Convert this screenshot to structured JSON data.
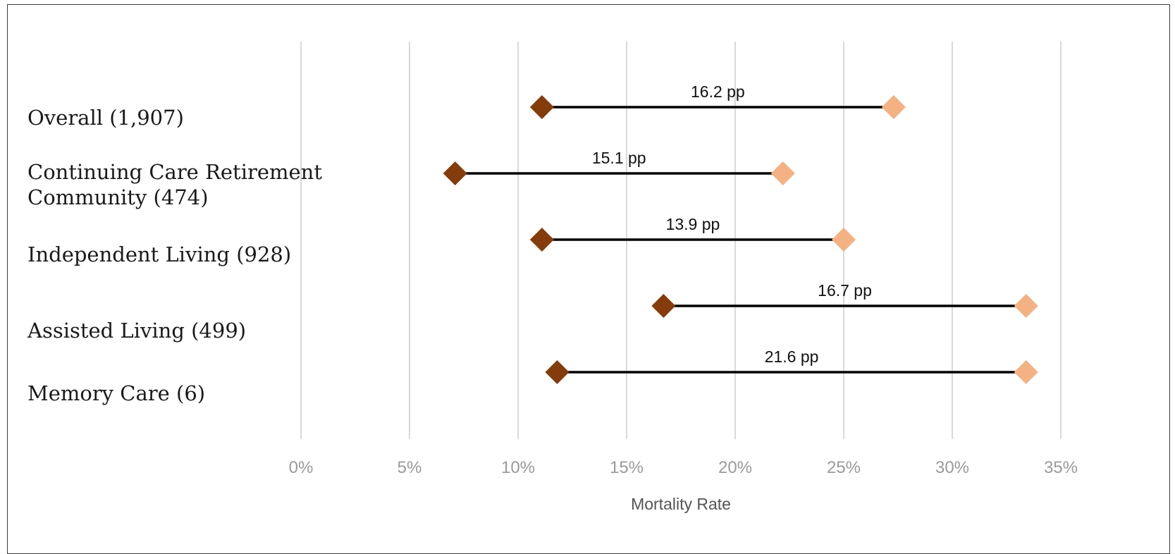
{
  "chart_data": {
    "type": "dumbbell",
    "title": "",
    "xlabel": "Mortality Rate",
    "ylabel": "",
    "xlim": [
      0,
      35
    ],
    "x_ticks": [
      0,
      5,
      10,
      15,
      20,
      25,
      30,
      35
    ],
    "x_tick_labels": [
      "0%",
      "5%",
      "10%",
      "15%",
      "20%",
      "25%",
      "30%",
      "35%"
    ],
    "grid": "vertical",
    "legend": "none",
    "categories": [
      {
        "label_lines": [
          "Overall (1,907)"
        ],
        "low": 11.1,
        "high": 27.3,
        "diff_label": "16.2 pp"
      },
      {
        "label_lines": [
          "Continuing Care Retirement",
          "Community (474)"
        ],
        "low": 7.1,
        "high": 22.2,
        "diff_label": "15.1 pp"
      },
      {
        "label_lines": [
          "Independent Living (928)"
        ],
        "low": 11.1,
        "high": 25.0,
        "diff_label": "13.9 pp"
      },
      {
        "label_lines": [
          "Assisted Living (499)"
        ],
        "low": 16.7,
        "high": 33.4,
        "diff_label": "16.7 pp"
      },
      {
        "label_lines": [
          "Memory Care (6)"
        ],
        "low": 11.8,
        "high": 33.4,
        "diff_label": "21.6 pp"
      }
    ],
    "colors": {
      "low_marker": "#843c0c",
      "high_marker": "#f4b183",
      "line": "#000000"
    }
  }
}
